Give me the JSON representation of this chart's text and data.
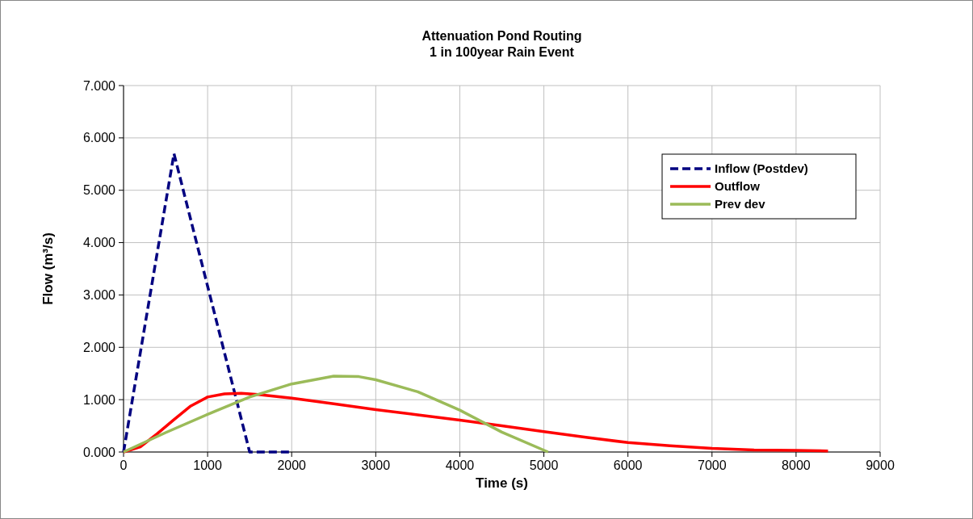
{
  "chart_data": {
    "type": "line",
    "title": "Attenuation Pond Routing\n1 in 100year Rain Event",
    "xlabel": "Time (s)",
    "ylabel": "Flow (m³/s)",
    "xlim": [
      0,
      9000
    ],
    "xticks": [
      0,
      1000,
      2000,
      3000,
      4000,
      5000,
      6000,
      7000,
      8000,
      9000
    ],
    "ylim": [
      0,
      7
    ],
    "yticks": [
      {
        "value": 0,
        "label": "0.000"
      },
      {
        "value": 1,
        "label": "1.000"
      },
      {
        "value": 2,
        "label": "2.000"
      },
      {
        "value": 3,
        "label": "3.000"
      },
      {
        "value": 4,
        "label": "4.000"
      },
      {
        "value": 5,
        "label": "5.000"
      },
      {
        "value": 6,
        "label": "6.000"
      },
      {
        "value": 7,
        "label": "7.000"
      }
    ],
    "grid": true,
    "legend": "top right",
    "series": [
      {
        "name": "Inflow (Postdev)",
        "color": "#000080",
        "line_style": "dashed",
        "x": [
          0,
          600,
          1500,
          2000
        ],
        "values": [
          0,
          5.7,
          0,
          0
        ]
      },
      {
        "name": "Outflow",
        "color": "#ff0000",
        "line_style": "solid",
        "x": [
          0,
          200,
          400,
          600,
          800,
          1000,
          1200,
          1400,
          1600,
          2000,
          2500,
          3000,
          3500,
          4000,
          4500,
          5000,
          5500,
          6000,
          6500,
          7000,
          7500,
          8000,
          8380
        ],
        "values": [
          0,
          0.1,
          0.35,
          0.62,
          0.88,
          1.05,
          1.11,
          1.12,
          1.1,
          1.03,
          0.92,
          0.81,
          0.71,
          0.61,
          0.5,
          0.39,
          0.28,
          0.18,
          0.12,
          0.07,
          0.04,
          0.03,
          0.02
        ]
      },
      {
        "name": "Prev dev",
        "color": "#9bbb59",
        "line_style": "solid",
        "x": [
          0,
          500,
          1000,
          1500,
          2000,
          2500,
          2800,
          3000,
          3500,
          4000,
          4500,
          5050
        ],
        "values": [
          0,
          0.37,
          0.72,
          1.05,
          1.3,
          1.45,
          1.44,
          1.38,
          1.15,
          0.8,
          0.38,
          0
        ]
      }
    ]
  }
}
